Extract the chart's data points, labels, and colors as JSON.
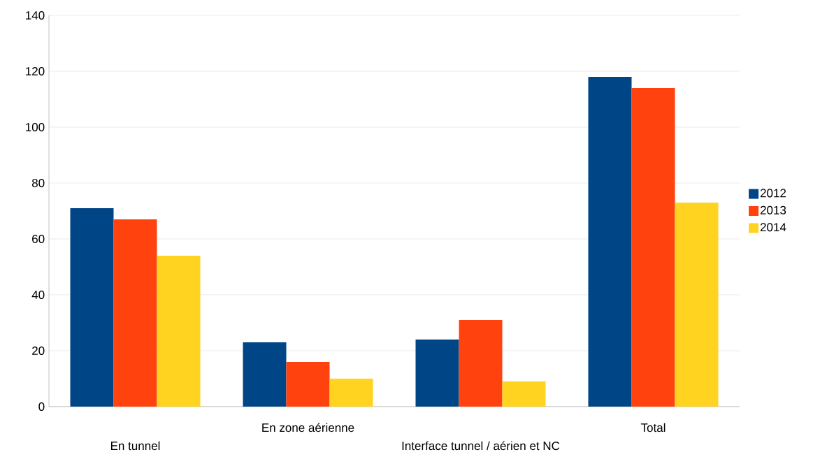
{
  "chart_data": {
    "type": "bar",
    "categories": [
      "En tunnel",
      "En zone aérienne",
      "Interface tunnel / aérien et NC",
      "Total"
    ],
    "series": [
      {
        "name": "2012",
        "color": "#004586",
        "values": [
          71,
          23,
          24,
          118
        ]
      },
      {
        "name": "2013",
        "color": "#ff420e",
        "values": [
          67,
          16,
          31,
          114
        ]
      },
      {
        "name": "2014",
        "color": "#ffd320",
        "values": [
          54,
          10,
          9,
          73
        ]
      }
    ],
    "ylim": [
      0,
      140
    ],
    "yticks": [
      0,
      20,
      40,
      60,
      80,
      100,
      120,
      140
    ],
    "grid": "y",
    "legend": "right"
  }
}
